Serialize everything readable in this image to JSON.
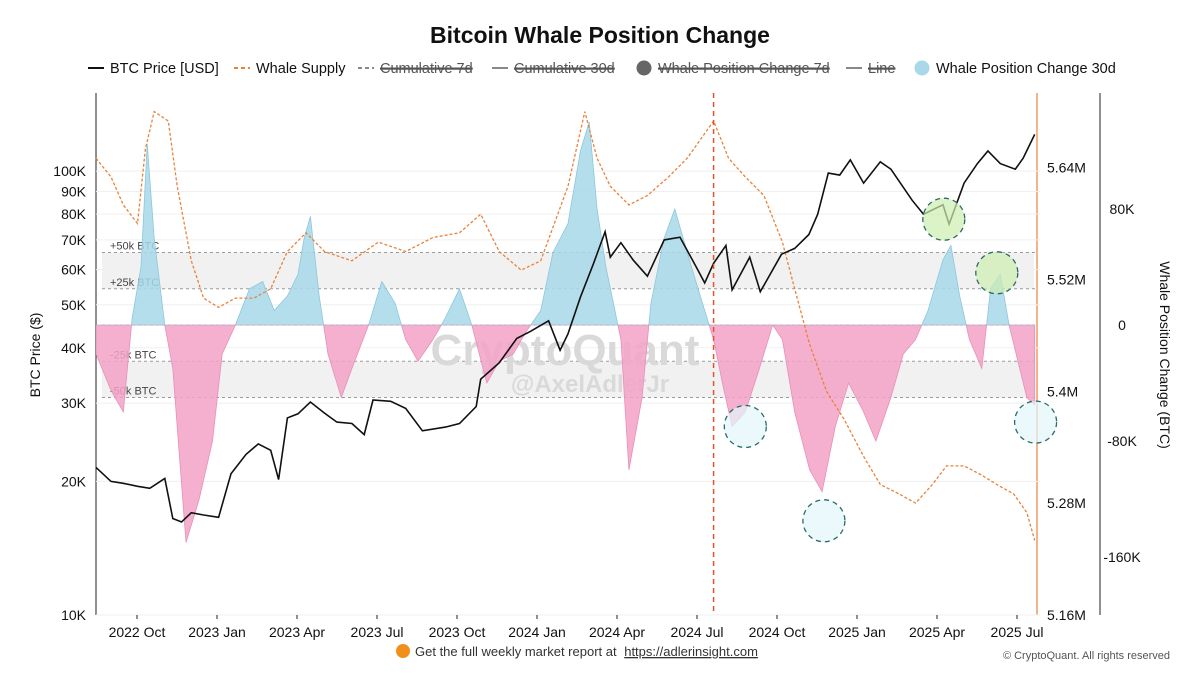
{
  "chart_data": {
    "type": "line",
    "title": "Bitcoin Whale Position Change",
    "legend": {
      "placement": "top",
      "items": [
        {
          "label": "BTC Price [USD]",
          "marker": "solid-line",
          "color": "#111111",
          "active": true
        },
        {
          "label": "Whale Supply",
          "marker": "dashed-line",
          "color": "#e8833a",
          "active": true
        },
        {
          "label": "Cumulative 7d",
          "marker": "dashed-line",
          "color": "#888888",
          "active": false
        },
        {
          "label": "Cumulative 30d",
          "marker": "solid-line",
          "color": "#888888",
          "active": false
        },
        {
          "label": "Whale Position Change 7d",
          "marker": "dot",
          "color": "#666666",
          "active": false
        },
        {
          "label": "Line",
          "marker": "solid-line",
          "color": "#888888",
          "active": false
        },
        {
          "label": "Whale Position Change 30d",
          "marker": "dot",
          "color": "#a8d8ea",
          "active": true
        }
      ]
    },
    "x_ticks": [
      "2022 Oct",
      "2023 Jan",
      "2023 Apr",
      "2023 Jul",
      "2023 Oct",
      "2024 Jan",
      "2024 Apr",
      "2024 Jul",
      "2024 Oct",
      "2025 Jan",
      "2025 Apr",
      "2025 Jul"
    ],
    "x_range": [
      "2022-08-15",
      "2025-07-20"
    ],
    "y_left": {
      "label": "BTC Price ($)",
      "scale": "log",
      "range": [
        10000,
        150000
      ],
      "ticks": [
        {
          "label": "10K",
          "v": 10000
        },
        {
          "label": "20K",
          "v": 20000
        },
        {
          "label": "30K",
          "v": 30000
        },
        {
          "label": "40K",
          "v": 40000
        },
        {
          "label": "50K",
          "v": 50000
        },
        {
          "label": "60K",
          "v": 60000
        },
        {
          "label": "70K",
          "v": 70000
        },
        {
          "label": "80K",
          "v": 80000
        },
        {
          "label": "90K",
          "v": 90000
        },
        {
          "label": "100K",
          "v": 100000
        }
      ]
    },
    "y_supply": {
      "label": "",
      "range": [
        5160000,
        5720000
      ],
      "ticks": [
        {
          "label": "5.16M",
          "v": 5160000
        },
        {
          "label": "5.28M",
          "v": 5280000
        },
        {
          "label": "5.4M",
          "v": 5400000
        },
        {
          "label": "5.52M",
          "v": 5520000
        },
        {
          "label": "5.64M",
          "v": 5640000
        }
      ]
    },
    "y_right": {
      "label": "Whale Position Change (BTC)",
      "range": [
        -200000,
        160000
      ],
      "ticks": [
        {
          "label": "-160K",
          "v": -160000
        },
        {
          "label": "-80K",
          "v": -80000
        },
        {
          "label": "0",
          "v": 0
        },
        {
          "label": "80K",
          "v": 80000
        }
      ]
    },
    "reference_bands": [
      {
        "label": "+50k BTC",
        "value": 50000
      },
      {
        "label": "+25k BTC",
        "value": 25000
      },
      {
        "label": "-25k BTC",
        "value": -25000
      },
      {
        "label": "-50k BTC",
        "value": -50000
      }
    ],
    "vertical_marker": {
      "date": "2024-07-15",
      "color": "#e0552a",
      "style": "dashed"
    },
    "series": [
      {
        "name": "BTC Price [USD]",
        "axis": "y_left",
        "color": "#111111",
        "points": [
          [
            "2022-08-15",
            21500
          ],
          [
            "2022-09-01",
            20000
          ],
          [
            "2022-09-15",
            19800
          ],
          [
            "2022-10-01",
            19500
          ],
          [
            "2022-10-15",
            19300
          ],
          [
            "2022-11-01",
            20300
          ],
          [
            "2022-11-10",
            16500
          ],
          [
            "2022-11-20",
            16200
          ],
          [
            "2022-12-01",
            17000
          ],
          [
            "2022-12-15",
            16800
          ],
          [
            "2023-01-01",
            16600
          ],
          [
            "2023-01-15",
            20800
          ],
          [
            "2023-02-01",
            23000
          ],
          [
            "2023-02-15",
            24300
          ],
          [
            "2023-03-01",
            23500
          ],
          [
            "2023-03-10",
            20200
          ],
          [
            "2023-03-20",
            27800
          ],
          [
            "2023-04-01",
            28400
          ],
          [
            "2023-04-15",
            30200
          ],
          [
            "2023-05-01",
            28500
          ],
          [
            "2023-05-15",
            27200
          ],
          [
            "2023-06-01",
            27000
          ],
          [
            "2023-06-15",
            25500
          ],
          [
            "2023-06-25",
            30500
          ],
          [
            "2023-07-15",
            30300
          ],
          [
            "2023-08-01",
            29200
          ],
          [
            "2023-08-20",
            26000
          ],
          [
            "2023-09-15",
            26500
          ],
          [
            "2023-10-01",
            27000
          ],
          [
            "2023-10-20",
            29500
          ],
          [
            "2023-10-25",
            34000
          ],
          [
            "2023-11-15",
            37000
          ],
          [
            "2023-12-05",
            42000
          ],
          [
            "2023-12-20",
            43500
          ],
          [
            "2024-01-10",
            46000
          ],
          [
            "2024-01-23",
            39500
          ],
          [
            "2024-02-01",
            43000
          ],
          [
            "2024-02-15",
            52000
          ],
          [
            "2024-03-01",
            62000
          ],
          [
            "2024-03-14",
            73000
          ],
          [
            "2024-03-20",
            64000
          ],
          [
            "2024-04-01",
            69000
          ],
          [
            "2024-04-15",
            63000
          ],
          [
            "2024-05-01",
            58000
          ],
          [
            "2024-05-20",
            70000
          ],
          [
            "2024-06-07",
            71000
          ],
          [
            "2024-06-25",
            61000
          ],
          [
            "2024-07-05",
            56000
          ],
          [
            "2024-07-15",
            62000
          ],
          [
            "2024-07-29",
            68000
          ],
          [
            "2024-08-05",
            54000
          ],
          [
            "2024-08-25",
            64000
          ],
          [
            "2024-09-06",
            53500
          ],
          [
            "2024-09-30",
            65000
          ],
          [
            "2024-10-15",
            67000
          ],
          [
            "2024-10-31",
            72000
          ],
          [
            "2024-11-10",
            80000
          ],
          [
            "2024-11-22",
            99000
          ],
          [
            "2024-12-05",
            98000
          ],
          [
            "2024-12-17",
            106000
          ],
          [
            "2025-01-01",
            94000
          ],
          [
            "2025-01-20",
            105000
          ],
          [
            "2025-02-01",
            101000
          ],
          [
            "2025-02-25",
            86000
          ],
          [
            "2025-03-10",
            80000
          ],
          [
            "2025-04-01",
            84000
          ],
          [
            "2025-04-08",
            76000
          ],
          [
            "2025-04-25",
            94000
          ],
          [
            "2025-05-10",
            104000
          ],
          [
            "2025-05-22",
            111000
          ],
          [
            "2025-06-05",
            104000
          ],
          [
            "2025-06-22",
            101000
          ],
          [
            "2025-07-01",
            107000
          ],
          [
            "2025-07-14",
            121000
          ]
        ]
      },
      {
        "name": "Whale Supply",
        "axis": "y_supply",
        "color": "#e8833a",
        "points": [
          [
            "2022-08-15",
            5650000
          ],
          [
            "2022-09-01",
            5630000
          ],
          [
            "2022-09-15",
            5600000
          ],
          [
            "2022-10-01",
            5580000
          ],
          [
            "2022-10-10",
            5660000
          ],
          [
            "2022-10-20",
            5700000
          ],
          [
            "2022-11-05",
            5690000
          ],
          [
            "2022-11-15",
            5620000
          ],
          [
            "2022-12-01",
            5540000
          ],
          [
            "2022-12-15",
            5500000
          ],
          [
            "2023-01-01",
            5490000
          ],
          [
            "2023-01-20",
            5500000
          ],
          [
            "2023-02-10",
            5500000
          ],
          [
            "2023-03-01",
            5510000
          ],
          [
            "2023-03-20",
            5550000
          ],
          [
            "2023-04-10",
            5570000
          ],
          [
            "2023-05-01",
            5550000
          ],
          [
            "2023-06-01",
            5540000
          ],
          [
            "2023-07-01",
            5560000
          ],
          [
            "2023-08-01",
            5550000
          ],
          [
            "2023-09-01",
            5565000
          ],
          [
            "2023-10-01",
            5570000
          ],
          [
            "2023-10-25",
            5590000
          ],
          [
            "2023-11-15",
            5550000
          ],
          [
            "2023-12-10",
            5530000
          ],
          [
            "2024-01-01",
            5540000
          ],
          [
            "2024-02-01",
            5620000
          ],
          [
            "2024-02-20",
            5700000
          ],
          [
            "2024-03-05",
            5650000
          ],
          [
            "2024-03-20",
            5620000
          ],
          [
            "2024-04-10",
            5600000
          ],
          [
            "2024-05-01",
            5610000
          ],
          [
            "2024-05-25",
            5630000
          ],
          [
            "2024-06-15",
            5650000
          ],
          [
            "2024-07-15",
            5690000
          ],
          [
            "2024-08-01",
            5650000
          ],
          [
            "2024-08-20",
            5630000
          ],
          [
            "2024-09-10",
            5610000
          ],
          [
            "2024-10-01",
            5560000
          ],
          [
            "2024-10-15",
            5510000
          ],
          [
            "2024-11-01",
            5450000
          ],
          [
            "2024-11-20",
            5400000
          ],
          [
            "2024-12-10",
            5370000
          ],
          [
            "2025-01-01",
            5330000
          ],
          [
            "2025-01-20",
            5300000
          ],
          [
            "2025-02-10",
            5290000
          ],
          [
            "2025-03-01",
            5280000
          ],
          [
            "2025-03-20",
            5300000
          ],
          [
            "2025-04-05",
            5320000
          ],
          [
            "2025-04-25",
            5320000
          ],
          [
            "2025-05-15",
            5310000
          ],
          [
            "2025-06-01",
            5300000
          ],
          [
            "2025-06-20",
            5290000
          ],
          [
            "2025-07-05",
            5270000
          ],
          [
            "2025-07-14",
            5240000
          ]
        ]
      },
      {
        "name": "Whale Position Change 30d",
        "axis": "y_right",
        "color": "#a8d8ea",
        "negative_color": "#f2a2c6",
        "style": "area",
        "points": [
          [
            "2022-08-15",
            -20000
          ],
          [
            "2022-09-01",
            -45000
          ],
          [
            "2022-09-15",
            -60000
          ],
          [
            "2022-09-25",
            5000
          ],
          [
            "2022-10-05",
            40000
          ],
          [
            "2022-10-12",
            125000
          ],
          [
            "2022-10-20",
            60000
          ],
          [
            "2022-11-01",
            0
          ],
          [
            "2022-11-10",
            -30000
          ],
          [
            "2022-11-25",
            -150000
          ],
          [
            "2022-12-10",
            -120000
          ],
          [
            "2022-12-25",
            -80000
          ],
          [
            "2023-01-05",
            -20000
          ],
          [
            "2023-01-20",
            0
          ],
          [
            "2023-02-05",
            25000
          ],
          [
            "2023-02-20",
            30000
          ],
          [
            "2023-03-05",
            10000
          ],
          [
            "2023-03-20",
            20000
          ],
          [
            "2023-04-01",
            35000
          ],
          [
            "2023-04-08",
            60000
          ],
          [
            "2023-04-15",
            75000
          ],
          [
            "2023-04-25",
            20000
          ],
          [
            "2023-05-05",
            -20000
          ],
          [
            "2023-05-20",
            -50000
          ],
          [
            "2023-06-01",
            -30000
          ],
          [
            "2023-06-20",
            0
          ],
          [
            "2023-07-05",
            30000
          ],
          [
            "2023-07-20",
            15000
          ],
          [
            "2023-08-01",
            -10000
          ],
          [
            "2023-08-15",
            -25000
          ],
          [
            "2023-09-01",
            -10000
          ],
          [
            "2023-09-15",
            5000
          ],
          [
            "2023-10-01",
            25000
          ],
          [
            "2023-10-15",
            0
          ],
          [
            "2023-11-01",
            -40000
          ],
          [
            "2023-11-15",
            -25000
          ],
          [
            "2023-12-01",
            -20000
          ],
          [
            "2023-12-15",
            -5000
          ],
          [
            "2024-01-01",
            10000
          ],
          [
            "2024-01-15",
            50000
          ],
          [
            "2024-02-01",
            70000
          ],
          [
            "2024-02-15",
            120000
          ],
          [
            "2024-02-25",
            140000
          ],
          [
            "2024-03-05",
            80000
          ],
          [
            "2024-03-15",
            40000
          ],
          [
            "2024-04-01",
            -10000
          ],
          [
            "2024-04-10",
            -100000
          ],
          [
            "2024-04-25",
            -50000
          ],
          [
            "2024-05-05",
            15000
          ],
          [
            "2024-05-20",
            60000
          ],
          [
            "2024-06-01",
            80000
          ],
          [
            "2024-06-20",
            40000
          ],
          [
            "2024-07-05",
            10000
          ],
          [
            "2024-07-15",
            -10000
          ],
          [
            "2024-07-25",
            -40000
          ],
          [
            "2024-08-05",
            -70000
          ],
          [
            "2024-08-20",
            -60000
          ],
          [
            "2024-09-05",
            -30000
          ],
          [
            "2024-09-20",
            0
          ],
          [
            "2024-10-01",
            -10000
          ],
          [
            "2024-10-15",
            -60000
          ],
          [
            "2024-11-01",
            -100000
          ],
          [
            "2024-11-15",
            -115000
          ],
          [
            "2024-11-30",
            -70000
          ],
          [
            "2024-12-15",
            -40000
          ],
          [
            "2025-01-01",
            -60000
          ],
          [
            "2025-01-15",
            -80000
          ],
          [
            "2025-02-01",
            -50000
          ],
          [
            "2025-02-15",
            -20000
          ],
          [
            "2025-03-01",
            -10000
          ],
          [
            "2025-03-15",
            10000
          ],
          [
            "2025-04-01",
            45000
          ],
          [
            "2025-04-10",
            55000
          ],
          [
            "2025-04-20",
            20000
          ],
          [
            "2025-05-01",
            -10000
          ],
          [
            "2025-05-15",
            -30000
          ],
          [
            "2025-05-25",
            25000
          ],
          [
            "2025-06-05",
            35000
          ],
          [
            "2025-06-15",
            0
          ],
          [
            "2025-06-25",
            -25000
          ],
          [
            "2025-07-05",
            -50000
          ],
          [
            "2025-07-14",
            -55000
          ]
        ]
      }
    ],
    "annotations": [
      {
        "date": "2025-04-02",
        "value": 73000,
        "color": "#cdeeb0"
      },
      {
        "date": "2025-06-01",
        "value": 36000,
        "color": "#cdeeb0"
      },
      {
        "date": "2024-08-20",
        "value": -70000,
        "color": "#e4f6fb"
      },
      {
        "date": "2024-11-17",
        "value": -135000,
        "color": "#e4f6fb"
      },
      {
        "date": "2025-07-15",
        "value": -67000,
        "color": "#e4f6fb"
      }
    ]
  },
  "watermark": {
    "brand": "CryptoQuant",
    "handle": "@AxelAdlerJr"
  },
  "footer": {
    "text": "Get the full weekly market report at",
    "link": "https://adlerinsight.com",
    "copyright": "© CryptoQuant. All rights reserved"
  }
}
